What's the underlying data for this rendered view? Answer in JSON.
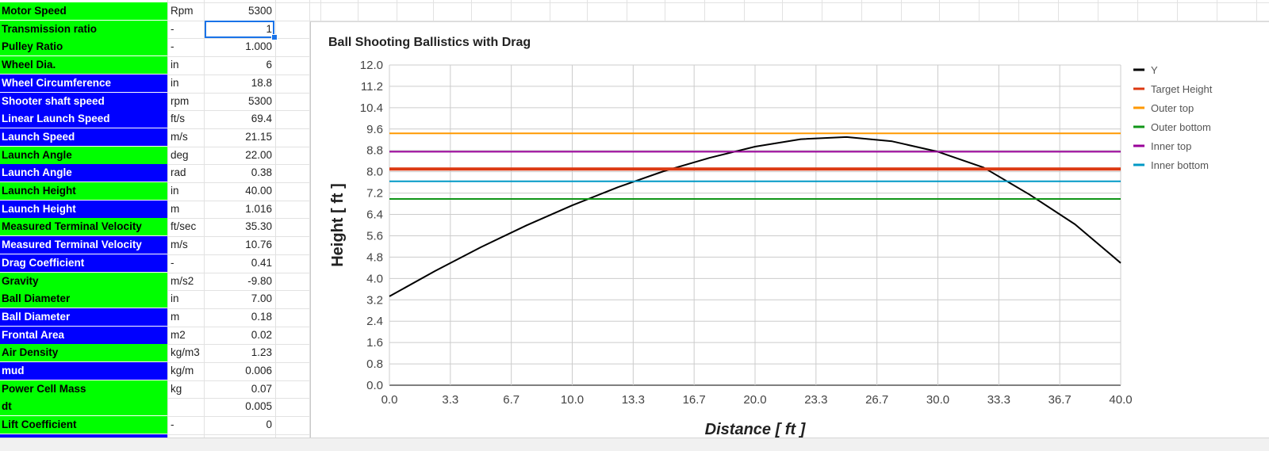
{
  "sheet": {
    "rows": [
      {
        "label": "Motor Speed",
        "unit": "Rpm",
        "value": "5300",
        "style": "green"
      },
      {
        "label": "Transmission ratio",
        "unit": "-",
        "value": "1",
        "style": "green",
        "selected": true
      },
      {
        "label": "Pulley Ratio",
        "unit": "-",
        "value": "1.000",
        "style": "green"
      },
      {
        "label": "Wheel Dia.",
        "unit": "in",
        "value": "6",
        "style": "green"
      },
      {
        "label": "Wheel Circumference",
        "unit": "in",
        "value": "18.8",
        "style": "blue"
      },
      {
        "label": "Shooter shaft speed",
        "unit": "rpm",
        "value": "5300",
        "style": "blue"
      },
      {
        "label": "Linear Launch Speed",
        "unit": "ft/s",
        "value": "69.4",
        "style": "blue"
      },
      {
        "label": "Launch Speed",
        "unit": "m/s",
        "value": "21.15",
        "style": "blue"
      },
      {
        "label": "Launch Angle",
        "unit": "deg",
        "value": "22.00",
        "style": "green"
      },
      {
        "label": "Launch Angle",
        "unit": "rad",
        "value": "0.38",
        "style": "blue"
      },
      {
        "label": "Launch Height",
        "unit": "in",
        "value": "40.00",
        "style": "green"
      },
      {
        "label": "Launch Height",
        "unit": "m",
        "value": "1.016",
        "style": "blue"
      },
      {
        "label": "Measured Terminal Velocity",
        "unit": "ft/sec",
        "value": "35.30",
        "style": "green"
      },
      {
        "label": "Measured Terminal Velocity",
        "unit": "m/s",
        "value": "10.76",
        "style": "blue"
      },
      {
        "label": "Drag Coefficient",
        "unit": "-",
        "value": "0.41",
        "style": "blue"
      },
      {
        "label": "Gravity",
        "unit": "m/s2",
        "value": "-9.80",
        "style": "green"
      },
      {
        "label": "Ball Diameter",
        "unit": "in",
        "value": "7.00",
        "style": "green"
      },
      {
        "label": "Ball Diameter",
        "unit": "m",
        "value": "0.18",
        "style": "blue"
      },
      {
        "label": "Frontal Area",
        "unit": "m2",
        "value": "0.02",
        "style": "blue"
      },
      {
        "label": "Air Density",
        "unit": "kg/m3",
        "value": "1.23",
        "style": "green"
      },
      {
        "label": "mud",
        "unit": "kg/m",
        "value": "0.006",
        "style": "blue"
      },
      {
        "label": "Power Cell Mass",
        "unit": "kg",
        "value": "0.07",
        "style": "green"
      },
      {
        "label": "dt",
        "unit": "",
        "value": "0.005",
        "style": "green"
      },
      {
        "label": "Lift Coefficient",
        "unit": "-",
        "value": "0",
        "style": "green"
      }
    ],
    "colors": {
      "green": "#00ff00",
      "blue": "#0000ff",
      "selection": "#1a73e8",
      "grid": "#e2e2e2"
    }
  },
  "chart_data": {
    "type": "line",
    "title": "Ball Shooting Ballistics with Drag",
    "xlabel": "Distance [ ft ]",
    "ylabel": "Height [ ft ]",
    "xlim": [
      0,
      40
    ],
    "ylim": [
      0,
      12
    ],
    "x_ticks": [
      "0.0",
      "3.3",
      "6.7",
      "10.0",
      "13.3",
      "16.7",
      "20.0",
      "23.3",
      "26.7",
      "30.0",
      "33.3",
      "36.7",
      "40.0"
    ],
    "y_ticks": [
      "0.0",
      "0.8",
      "1.6",
      "2.4",
      "3.2",
      "4.0",
      "4.8",
      "5.6",
      "6.4",
      "7.2",
      "8.0",
      "8.8",
      "9.6",
      "10.4",
      "11.2",
      "12.0"
    ],
    "grid": true,
    "legend_position": "right",
    "series": [
      {
        "name": "Y",
        "color": "#000000",
        "x": [
          0,
          2.5,
          5,
          7.5,
          10,
          12.5,
          15,
          17.5,
          20,
          22.5,
          25,
          27.5,
          30,
          32.5,
          35,
          37.5,
          40
        ],
        "y": [
          3.33,
          4.28,
          5.17,
          5.99,
          6.74,
          7.42,
          8.02,
          8.52,
          8.94,
          9.22,
          9.3,
          9.14,
          8.75,
          8.16,
          7.15,
          6.03,
          4.58
        ]
      },
      {
        "name": "Target Height",
        "color": "#dc3912",
        "x": [
          0,
          40
        ],
        "y": [
          8.1,
          8.1
        ],
        "width": 4
      },
      {
        "name": "Outer top",
        "color": "#ff9900",
        "x": [
          0,
          40
        ],
        "y": [
          9.44,
          9.44
        ],
        "width": 2
      },
      {
        "name": "Outer bottom",
        "color": "#109618",
        "x": [
          0,
          40
        ],
        "y": [
          6.98,
          6.98
        ],
        "width": 2
      },
      {
        "name": "Inner top",
        "color": "#990099",
        "x": [
          0,
          40
        ],
        "y": [
          8.75,
          8.75
        ],
        "width": 2
      },
      {
        "name": "Inner bottom",
        "color": "#0099c6",
        "x": [
          0,
          40
        ],
        "y": [
          7.64,
          7.64
        ],
        "width": 2
      }
    ]
  }
}
